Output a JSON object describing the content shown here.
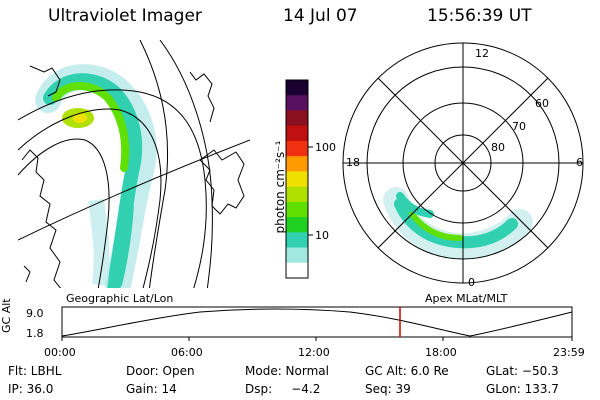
{
  "header": {
    "title": "Ultraviolet Imager",
    "date": "14 Jul 07",
    "time": "15:56:39 UT"
  },
  "colorbar": {
    "unit": "photon cm⁻²s⁻¹",
    "ticks": [
      "100",
      "10"
    ],
    "colors": [
      "#1a0030",
      "#5a1060",
      "#8a1020",
      "#c01010",
      "#f03010",
      "#ff9a00",
      "#f0e000",
      "#b0e000",
      "#60e000",
      "#20d020",
      "#30d0b0",
      "#a0e8e0",
      "#ffffff"
    ]
  },
  "map_labels": {
    "left_caption": "Geographic Lat/Lon",
    "right_caption": "Apex MLat/MLT",
    "polar": {
      "mlt_top": "12",
      "mlt_left": "18",
      "mlt_right": "6",
      "mlt_bottom": "0",
      "lat_60": "60",
      "lat_70": "70",
      "lat_80": "80"
    }
  },
  "timeline": {
    "ylabel": "GC Alt",
    "y_top": "9.0",
    "y_bottom": "1.8",
    "ticks": [
      "00:00",
      "06:00",
      "12:00",
      "18:00",
      "23:59"
    ],
    "marker_color": "#cc0000"
  },
  "info": {
    "row1": {
      "flt": "Flt: LBHL",
      "door": "Door: Open",
      "mode": "Mode: Normal",
      "gcalt": "GC Alt: 6.0 Re",
      "glat": "GLat: −50.3"
    },
    "row2": {
      "ip": "IP: 36.0",
      "gain": "Gain: 14",
      "dsp": "Dsp:     −4.2",
      "seq": "Seq: 39",
      "glon": "GLon: 133.7"
    }
  }
}
